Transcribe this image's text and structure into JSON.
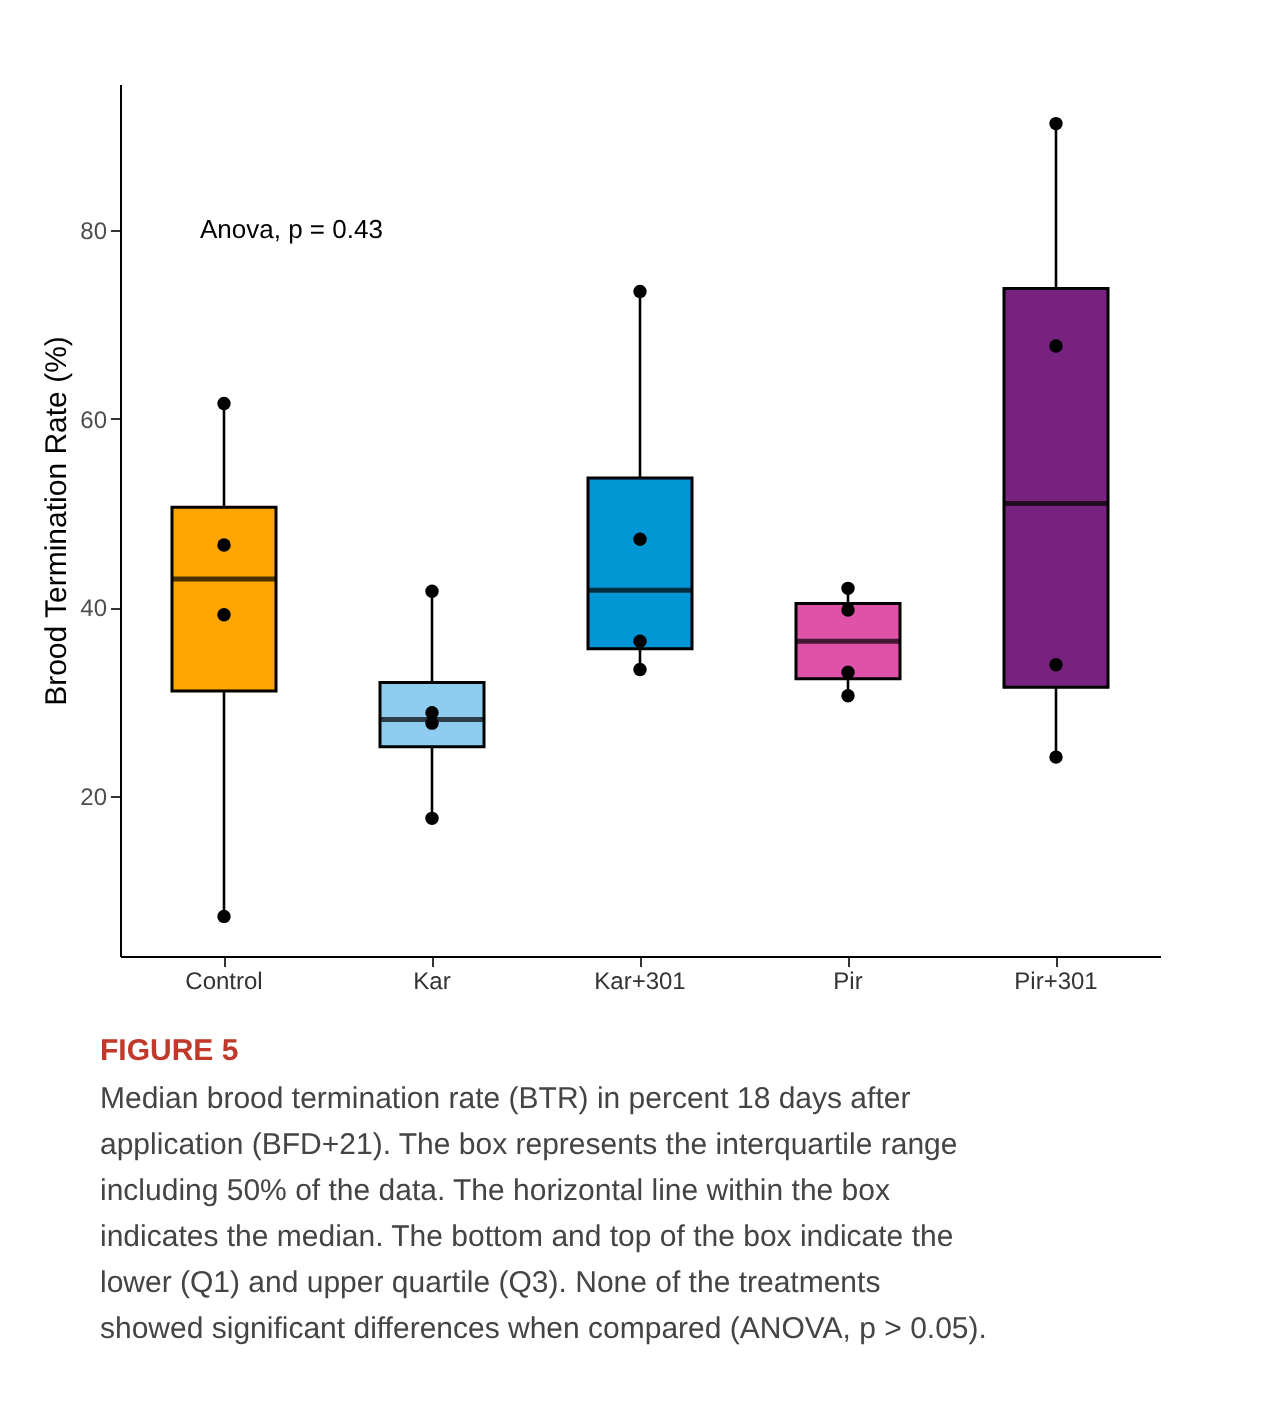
{
  "chart_data": {
    "type": "box",
    "ylabel": "Brood Termination Rate (%)",
    "categories": [
      "Control",
      "Kar",
      "Kar+301",
      "Pir",
      "Pir+301"
    ],
    "colors": [
      "#ffa500",
      "#8ecdf0",
      "#0096d6",
      "#e052a8",
      "#77227e"
    ],
    "boxes": [
      {
        "low": 7.2,
        "q1": 31.1,
        "median": 43,
        "q3": 50.6,
        "high": 61.4
      },
      {
        "low": 17.6,
        "q1": 25.2,
        "median": 28.1,
        "q3": 32,
        "high": 41.7
      },
      {
        "low": 33.6,
        "q1": 35.6,
        "median": 41.8,
        "q3": 53.7,
        "high": 73.4
      },
      {
        "low": 30.8,
        "q1": 32.4,
        "median": 36.4,
        "q3": 40.4,
        "high": 42.0
      },
      {
        "low": 24.1,
        "q1": 31.5,
        "median": 51.0,
        "q3": 73.8,
        "high": 91.3
      }
    ],
    "series": [
      {
        "type": "scatter",
        "color": "#000000",
        "x": [
          "Control",
          "Control",
          "Control",
          "Control",
          "Kar",
          "Kar",
          "Kar",
          "Kar",
          "Kar+301",
          "Kar+301",
          "Kar+301",
          "Kar+301",
          "Pir",
          "Pir",
          "Pir",
          "Pir",
          "Pir+301",
          "Pir+301",
          "Pir+301",
          "Pir+301"
        ],
        "values": [
          61.6,
          46.6,
          39.2,
          7.2,
          41.7,
          28.8,
          27.7,
          17.6,
          73.5,
          47.2,
          36.4,
          33.4,
          42.0,
          39.7,
          33.1,
          30.6,
          91.3,
          67.7,
          33.9,
          24.1
        ]
      }
    ],
    "ylim": [
      3,
      95.5
    ],
    "yticks": [
      20,
      40,
      60,
      80
    ],
    "grid": false,
    "annotations": [
      "Anova, p = 0.43",
      "FIGURE 5",
      "Median brood termination rate (BTR) in percent 18 days after application (BFD+21). The box represents the interquartile range including 50% of the data. The horizontal line within the box indicates the median. The bottom and top of the box indicate the lower (Q1) and upper quartile (Q3). None of the treatments showed significant differences when compared (ANOVA, p > 0.05)."
    ]
  }
}
